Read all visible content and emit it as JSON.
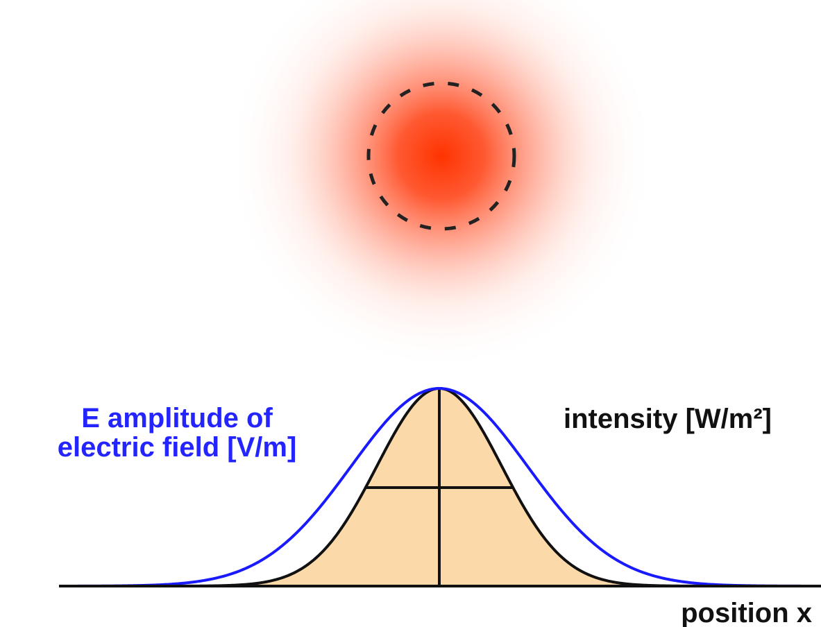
{
  "labels": {
    "field": [
      "E amplitude of",
      "electric field [V/m]"
    ],
    "intensity": "intensity [W/m²]",
    "position": "position x"
  }
}
